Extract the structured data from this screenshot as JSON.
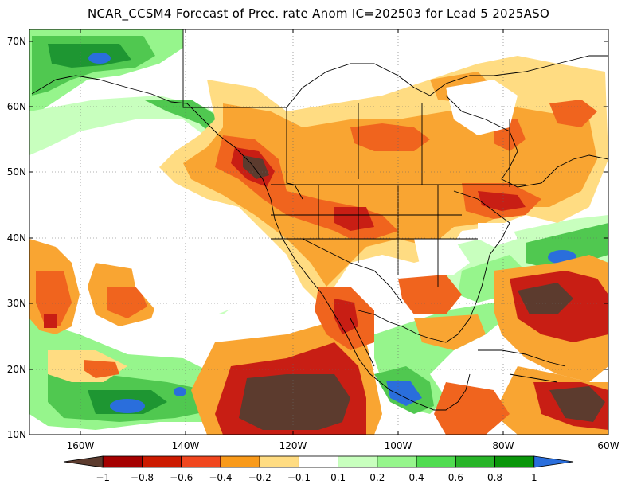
{
  "title": "NCAR_CCSM4 Forecast of Prec. rate Anom IC=202503 for Lead 5 2025ASO",
  "map": {
    "lat_labels": [
      "70N",
      "60N",
      "50N",
      "40N",
      "30N",
      "20N",
      "10N"
    ],
    "lon_labels": [
      "160W",
      "140W",
      "120W",
      "100W",
      "80W",
      "60W"
    ],
    "lon_range": [
      -170,
      -60
    ],
    "lat_range": [
      10,
      72
    ]
  },
  "colorbar": {
    "labels": [
      "−1",
      "−0.8",
      "−0.6",
      "−0.4",
      "−0.2",
      "−0.1",
      "0.1",
      "0.2",
      "0.4",
      "0.6",
      "0.8",
      "1"
    ],
    "colors": [
      "#5c3b2e",
      "#a50000",
      "#cc1a00",
      "#f0461e",
      "#f99a1a",
      "#ffdc82",
      "#ffffff",
      "#c8ffbe",
      "#96f58c",
      "#50dc50",
      "#28b428",
      "#0a960a",
      "#2a6edc"
    ]
  },
  "legend_colors": {
    "deep_dry": "#5c3b2e",
    "strong_dry": "#c81e14",
    "moderate_dry": "#f0641e",
    "mild_dry": "#f9a532",
    "slight_dry": "#ffdc82",
    "slight_wet": "#c8ffbe",
    "mild_wet": "#96f58c",
    "moderate_wet": "#50c850",
    "strong_wet": "#1e9632",
    "deep_wet": "#1e5adc"
  }
}
